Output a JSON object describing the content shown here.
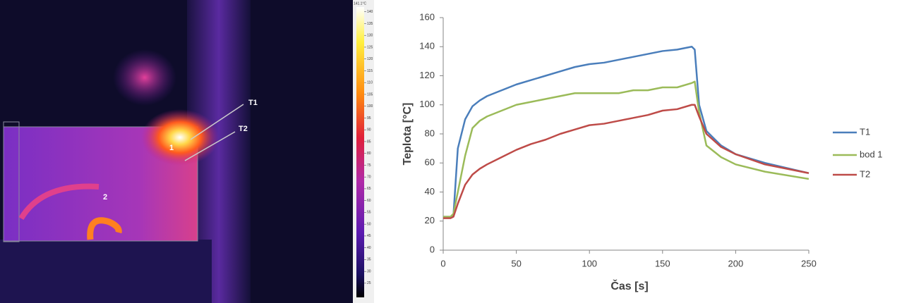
{
  "thermal_image": {
    "labels": [
      "T1",
      "T2",
      "1",
      "2"
    ],
    "colorbar": {
      "max_label": "141.1°C",
      "lim": [
        19,
        142
      ],
      "ticks": [
        140,
        135,
        130,
        125,
        120,
        115,
        110,
        105,
        100,
        95,
        90,
        85,
        80,
        75,
        70,
        65,
        60,
        55,
        50,
        45,
        40,
        35,
        30,
        25
      ]
    }
  },
  "chart_data": {
    "type": "line",
    "x_label": "Čas [s]",
    "y_label": "Teplota [°C]",
    "x": [
      0,
      5,
      7,
      10,
      15,
      20,
      25,
      30,
      40,
      50,
      60,
      70,
      80,
      90,
      100,
      110,
      120,
      130,
      140,
      150,
      160,
      170,
      172,
      175,
      180,
      190,
      200,
      220,
      250
    ],
    "series": [
      {
        "name": "T1",
        "color": "#4a7ebb",
        "values": [
          23,
          23,
          24,
          70,
          90,
          99,
          103,
          106,
          110,
          114,
          117,
          120,
          123,
          126,
          128,
          129,
          131,
          133,
          135,
          137,
          138,
          140,
          138,
          100,
          82,
          72,
          66,
          60,
          53
        ]
      },
      {
        "name": "bod 1",
        "color": "#9bbb59",
        "values": [
          23,
          23,
          25,
          40,
          65,
          84,
          89,
          92,
          96,
          100,
          102,
          104,
          106,
          108,
          108,
          108,
          108,
          110,
          110,
          112,
          112,
          115,
          116,
          95,
          72,
          64,
          59,
          54,
          49
        ]
      },
      {
        "name": "T2",
        "color": "#be4b48",
        "values": [
          22,
          22,
          23,
          32,
          45,
          52,
          56,
          59,
          64,
          69,
          73,
          76,
          80,
          83,
          86,
          87,
          89,
          91,
          93,
          96,
          97,
          100,
          100,
          92,
          80,
          71,
          66,
          59,
          53
        ]
      }
    ],
    "xlim": [
      0,
      250
    ],
    "xticks": [
      0,
      50,
      100,
      150,
      200,
      250
    ],
    "ylim": [
      0,
      160
    ],
    "yticks": [
      0,
      20,
      40,
      60,
      80,
      100,
      120,
      140,
      160
    ],
    "grid": false,
    "legend": "right"
  }
}
